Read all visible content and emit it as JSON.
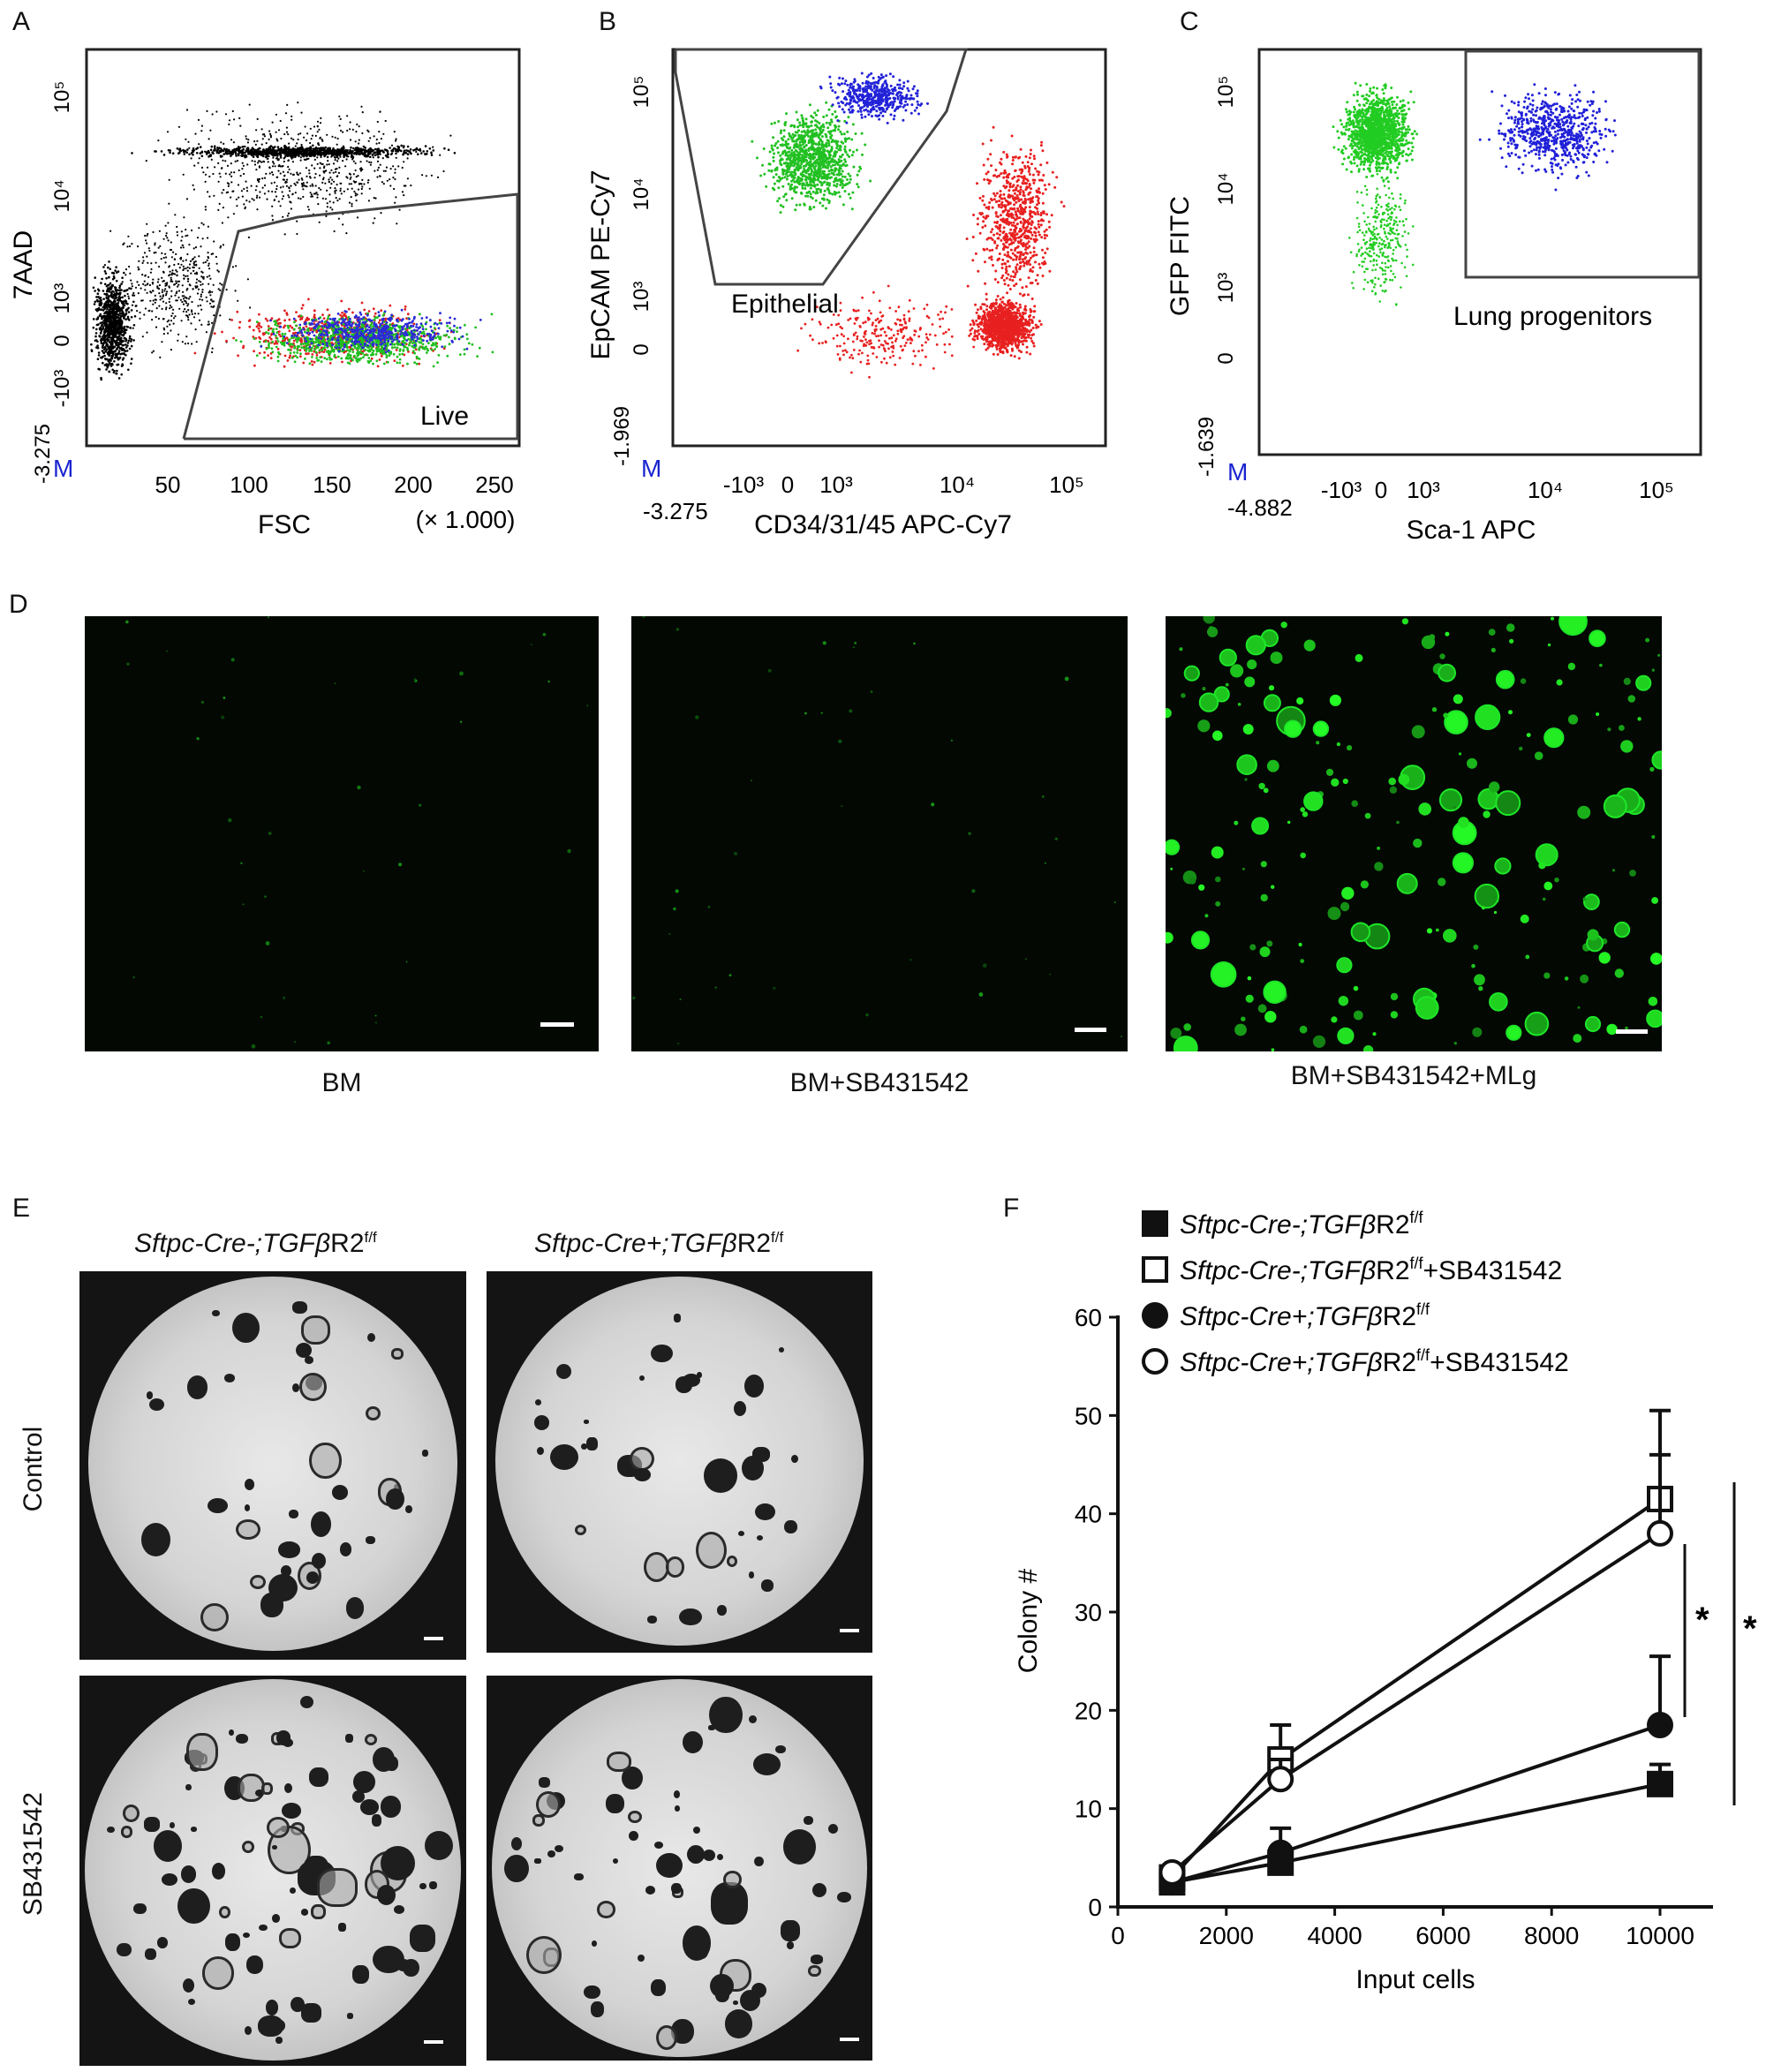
{
  "panels": {
    "A": {
      "letter": "A"
    },
    "B": {
      "letter": "B"
    },
    "C": {
      "letter": "C"
    },
    "D": {
      "letter": "D"
    },
    "E": {
      "letter": "E"
    },
    "F": {
      "letter": "F"
    }
  },
  "flow": {
    "A": {
      "ylabel": "7AAD",
      "xlabel": "FSC",
      "x_multiplier": "(× 1.000)",
      "x_ticks": [
        "50",
        "100",
        "150",
        "200",
        "250"
      ],
      "y_ticks": [
        "10⁵",
        "10⁴",
        "10³",
        "0",
        "-10³"
      ],
      "y_min_label": "-3.275",
      "m_marker": "M",
      "gate_label": "Live"
    },
    "B": {
      "ylabel": "EpCAM PE-Cy7",
      "xlabel": "CD34/31/45 APC-Cy7",
      "x_ticks": [
        "-10³",
        "0",
        "10³",
        "10⁴",
        "10⁵"
      ],
      "y_ticks": [
        "10⁵",
        "10⁴",
        "10³",
        "0"
      ],
      "y_min_label": "-1.969",
      "x_min_label": "-3.275",
      "m_marker": "M",
      "gate_label": "Epithelial"
    },
    "C": {
      "ylabel": "GFP FITC",
      "xlabel": "Sca-1 APC",
      "x_ticks": [
        "-10³",
        "0",
        "10³",
        "10⁴",
        "10⁵"
      ],
      "y_ticks": [
        "10⁵",
        "10⁴",
        "10³",
        "0"
      ],
      "y_min_label": "-1.639",
      "x_min_label": "-4.882",
      "m_marker": "M",
      "gate_label": "Lung progenitors"
    }
  },
  "panelD": {
    "captions": [
      "BM",
      "BM+SB431542",
      "BM+SB431542+MLg"
    ]
  },
  "panelE": {
    "col_headers": [
      {
        "gene_prefix": "Sftpc-Cre-;TGF",
        "beta": "β",
        "suffix": "R2",
        "sup": "f/f"
      },
      {
        "gene_prefix": "Sftpc-Cre+;TGF",
        "beta": "β",
        "suffix": "R2",
        "sup": "f/f"
      }
    ],
    "row_labels": [
      "Control",
      "SB431542"
    ]
  },
  "chart_data": {
    "type": "line",
    "xlabel": "Input cells",
    "ylabel": "Colony #",
    "xlim": [
      0,
      10000
    ],
    "ylim": [
      0,
      60
    ],
    "x_ticks": [
      "0",
      "2000",
      "4000",
      "6000",
      "8000",
      "10000"
    ],
    "y_ticks": [
      "0",
      "10",
      "20",
      "30",
      "40",
      "50",
      "60"
    ],
    "x": [
      1000,
      3000,
      10000
    ],
    "series": [
      {
        "name": "Sftpc-Cre-;TGFβR2f/f",
        "label_prefix": "Sftpc-Cre-;TGF",
        "label_mid": "β",
        "label_r": "R2",
        "label_sup": "f/f",
        "label_suffix": "",
        "marker": "square-filled",
        "values": [
          2.5,
          4.5,
          12.5
        ],
        "errors": [
          0.5,
          1.0,
          2.0
        ]
      },
      {
        "name": "Sftpc-Cre-;TGFβR2f/f+SB431542",
        "label_prefix": "Sftpc-Cre-;TGF",
        "label_mid": "β",
        "label_r": "R2",
        "label_sup": "f/f",
        "label_suffix": "+SB431542",
        "marker": "square-open",
        "values": [
          3.0,
          15.0,
          41.5
        ],
        "errors": [
          0.6,
          3.5,
          9.0
        ]
      },
      {
        "name": "Sftpc-Cre+;TGFβR2f/f",
        "label_prefix": "Sftpc-Cre+;TGF",
        "label_mid": "β",
        "label_r": "R2",
        "label_sup": "f/f",
        "label_suffix": "",
        "marker": "circle-filled",
        "values": [
          2.5,
          5.5,
          18.5
        ],
        "errors": [
          0.6,
          2.5,
          7.0
        ]
      },
      {
        "name": "Sftpc-Cre+;TGFβR2f/f+SB431542",
        "label_prefix": "Sftpc-Cre+;TGF",
        "label_mid": "β",
        "label_r": "R2",
        "label_sup": "f/f",
        "label_suffix": "+SB431542",
        "marker": "circle-open",
        "values": [
          3.5,
          13.0,
          38.0
        ],
        "errors": [
          0.6,
          2.0,
          8.0
        ]
      }
    ],
    "significance": [
      "*",
      "*"
    ]
  }
}
